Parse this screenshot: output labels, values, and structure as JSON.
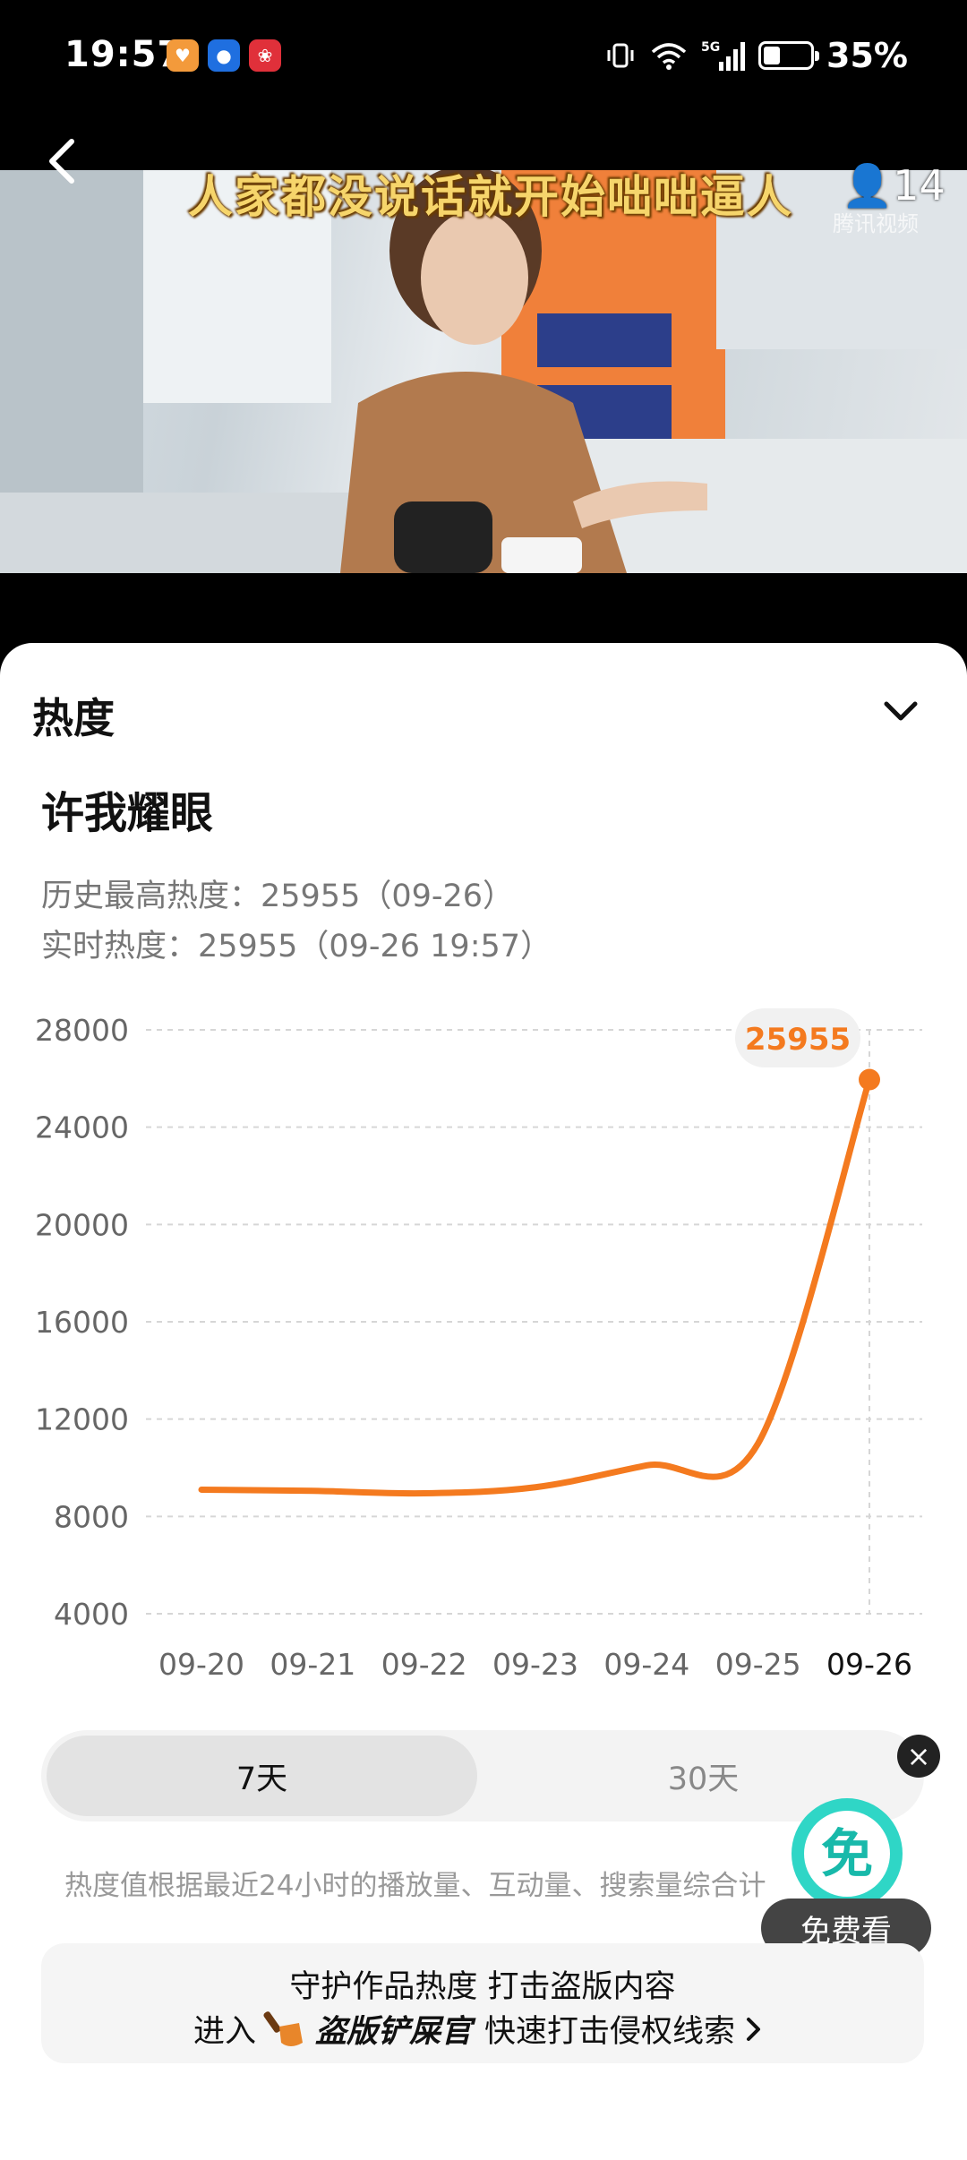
{
  "status_bar": {
    "time": "19:57",
    "battery": "35%",
    "battery_level": 0.35,
    "network": "5G",
    "icons": [
      "heart-app-icon",
      "circle-app-icon",
      "red-app-icon",
      "vibrate-icon",
      "wifi-icon",
      "signal-icon",
      "battery-icon"
    ]
  },
  "video": {
    "subtitle": "人家都没说话就开始咄咄逼人",
    "viewer_count": "14",
    "watermark": "腾讯视频"
  },
  "sheet": {
    "title": "热度",
    "show_title": "许我耀眼",
    "history_high": "历史最高热度：25955（09-26）",
    "realtime": "实时热度：25955（09-26 19:57）"
  },
  "chart_data": {
    "type": "line",
    "x": [
      "09-20",
      "09-21",
      "09-22",
      "09-23",
      "09-24",
      "09-25",
      "09-26"
    ],
    "series": [
      {
        "values": [
          9100,
          9050,
          8950,
          9200,
          10100,
          11000,
          25955
        ]
      }
    ],
    "ylim": [
      4000,
      28000
    ],
    "yticks": [
      28000,
      24000,
      20000,
      16000,
      12000,
      8000,
      4000
    ],
    "highlight_label": "25955",
    "grid": true,
    "color": "#f47a1f"
  },
  "range_toggle": {
    "options": [
      "7天",
      "30天"
    ],
    "selected": "7天"
  },
  "disclaimer": "热度值根据最近24小时的播放量、互动量、搜索量综合计",
  "free_watch": {
    "label": "免费看",
    "badge": "免"
  },
  "protect": {
    "line1": "守护作品热度 打击盗版内容",
    "enter": "进入",
    "brand": "盗版铲屎官",
    "action": "快速打击侵权线索"
  }
}
